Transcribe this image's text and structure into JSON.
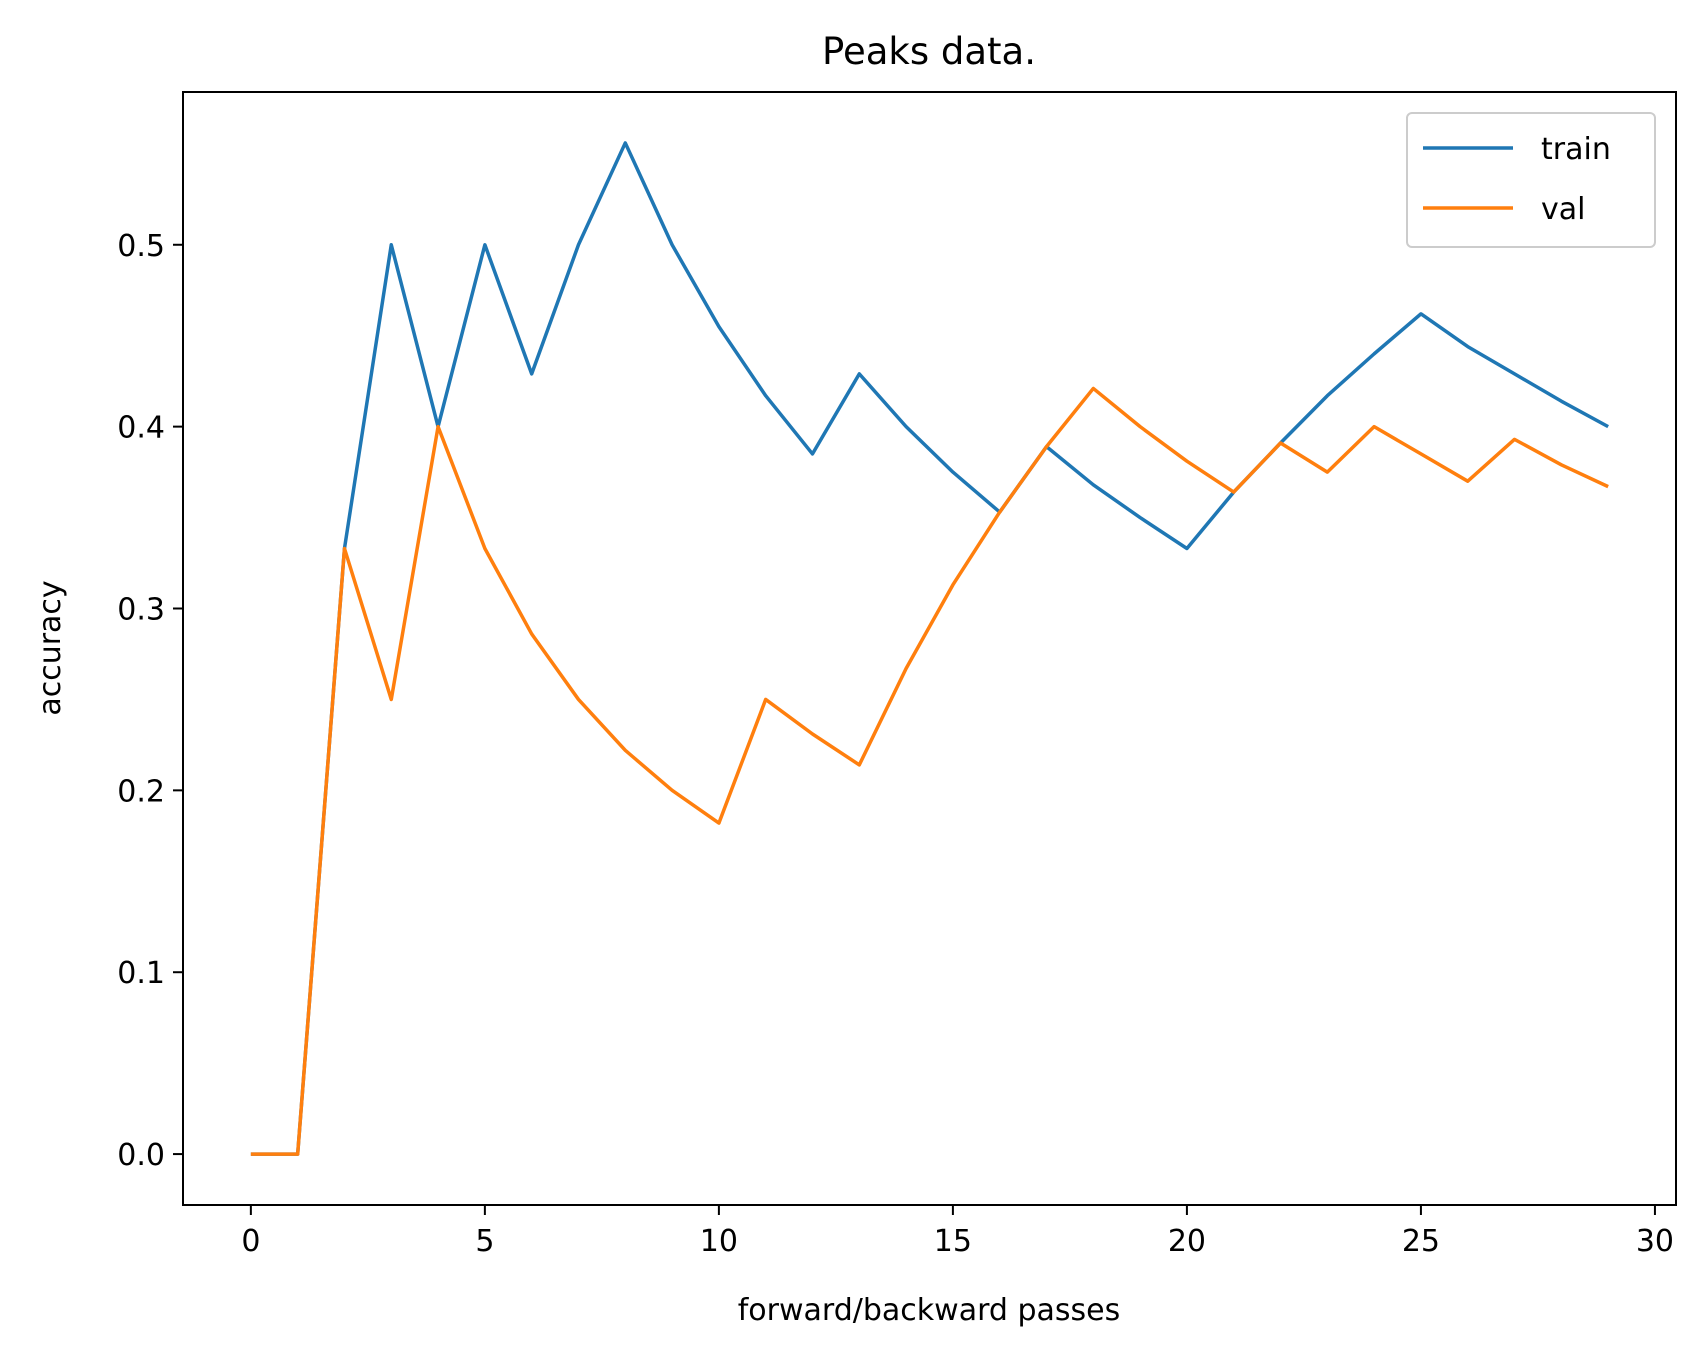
{
  "chart_data": {
    "type": "line",
    "title": "Peaks data.",
    "xlabel": "forward/backward passes",
    "ylabel": "accuracy",
    "xlim": [
      -1.45,
      30.45
    ],
    "ylim": [
      -0.028,
      0.584
    ],
    "xticks": [
      0,
      5,
      10,
      15,
      20,
      25,
      30
    ],
    "xtick_labels": [
      "0",
      "5",
      "10",
      "15",
      "20",
      "25",
      "30"
    ],
    "yticks": [
      0.0,
      0.1,
      0.2,
      0.3,
      0.4,
      0.5
    ],
    "ytick_labels": [
      "0.0",
      "0.1",
      "0.2",
      "0.3",
      "0.4",
      "0.5"
    ],
    "grid": false,
    "legend_position": "top-right",
    "x": [
      0,
      1,
      2,
      3,
      4,
      5,
      6,
      7,
      8,
      9,
      10,
      11,
      12,
      13,
      14,
      15,
      16,
      17,
      18,
      19,
      20,
      21,
      22,
      23,
      24,
      25,
      26,
      27,
      28,
      29
    ],
    "series": [
      {
        "name": "train",
        "color": "#1f77b4",
        "values": [
          0.0,
          0.0,
          0.333,
          0.5,
          0.4,
          0.5,
          0.429,
          0.5,
          0.556,
          0.5,
          0.455,
          0.417,
          0.385,
          0.429,
          0.4,
          0.375,
          0.353,
          0.389,
          0.368,
          0.35,
          0.333,
          0.364,
          0.391,
          0.417,
          0.44,
          0.462,
          0.444,
          0.429,
          0.414,
          0.4
        ]
      },
      {
        "name": "val",
        "color": "#ff7f0e",
        "values": [
          0.0,
          0.0,
          0.333,
          0.25,
          0.4,
          0.333,
          0.286,
          0.25,
          0.222,
          0.2,
          0.182,
          0.25,
          0.231,
          0.214,
          0.267,
          0.313,
          0.353,
          0.389,
          0.421,
          0.4,
          0.381,
          0.364,
          0.391,
          0.375,
          0.4,
          0.385,
          0.37,
          0.393,
          0.379,
          0.367
        ]
      }
    ]
  }
}
